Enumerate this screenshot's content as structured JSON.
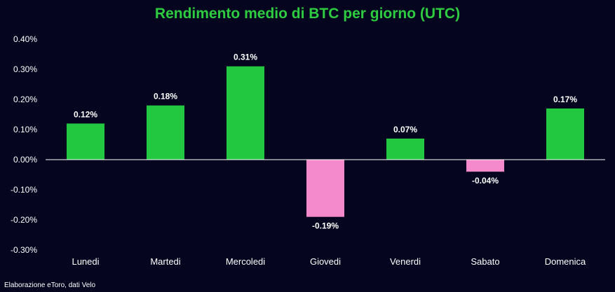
{
  "colors": {
    "background": "#05051f",
    "title": "#2ecc40",
    "positive": "#22c83f",
    "negative": "#f48acb",
    "text": "#ffffff",
    "axis": "#ffffff"
  },
  "chart_data": {
    "type": "bar",
    "title": "Rendimento medio di BTC per giorno (UTC)",
    "xlabel": "",
    "ylabel": "",
    "categories": [
      "Lunedi",
      "Martedi",
      "Mercoledi",
      "Giovedi",
      "Venerdi",
      "Sabato",
      "Domenica"
    ],
    "values": [
      0.12,
      0.18,
      0.31,
      -0.19,
      0.07,
      -0.04,
      0.17
    ],
    "value_labels": [
      "0.12%",
      "0.18%",
      "0.31%",
      "-0.19%",
      "0.07%",
      "-0.04%",
      "0.17%"
    ],
    "ylim": [
      -0.3,
      0.4
    ],
    "yticks": [
      0.4,
      0.3,
      0.2,
      0.1,
      0.0,
      -0.1,
      -0.2,
      -0.3
    ],
    "ytick_labels": [
      "0.40%",
      "0.30%",
      "0.20%",
      "0.10%",
      "0.00%",
      "-0.10%",
      "-0.20%",
      "-0.30%"
    ],
    "grid": false,
    "legend": "none"
  },
  "source": "Elaborazione eToro, dati Velo"
}
